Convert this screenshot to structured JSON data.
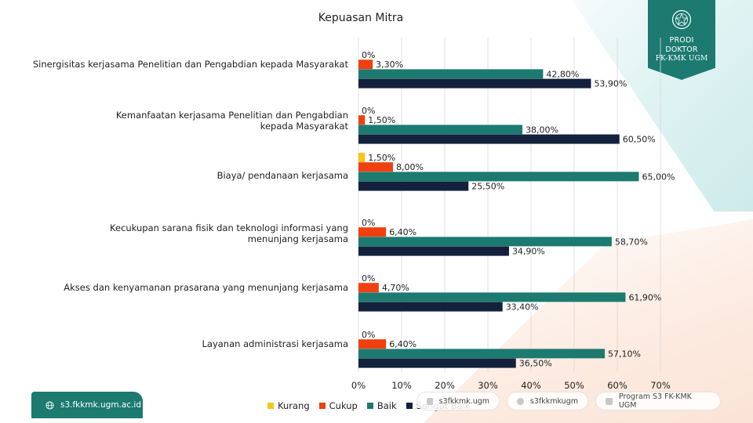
{
  "chart_data": {
    "type": "bar",
    "orientation": "horizontal",
    "title": "Kepuasan Mitra",
    "categories": [
      "Sinergisitas kerjasama Penelitian dan Pengabdian kepada Masyarakat",
      "Kemanfaatan kerjasama Penelitian dan Pengabdian kepada Masyarakat",
      "Biaya/ pendanaan kerjasama",
      "Kecukupan sarana fisik dan teknologi informasi yang menunjang kerjasama",
      "Akses dan kenyamanan prasarana yang menunjang kerjasama",
      "Layanan administrasi kerjasama"
    ],
    "series": [
      {
        "name": "Kurang",
        "color": "#F5C518",
        "values": [
          0,
          0,
          1.5,
          0,
          0,
          0
        ],
        "labels": [
          "0%",
          "0%",
          "1,50%",
          "0%",
          "0%",
          "0%"
        ]
      },
      {
        "name": "Cukup",
        "color": "#F0400F",
        "values": [
          3.3,
          1.5,
          8.0,
          6.4,
          4.7,
          6.4
        ],
        "labels": [
          "3,30%",
          "1,50%",
          "8,00%",
          "6,40%",
          "4,70%",
          "6,40%"
        ]
      },
      {
        "name": "Baik",
        "color": "#1C7A70",
        "values": [
          42.8,
          38.0,
          65.0,
          58.7,
          61.9,
          57.1
        ],
        "labels": [
          "42,80%",
          "38,00%",
          "65,00%",
          "58,70%",
          "61,90%",
          "57,10%"
        ]
      },
      {
        "name": "Sangat Baik",
        "color": "#14213D",
        "values": [
          53.9,
          60.5,
          25.5,
          34.9,
          33.4,
          36.5
        ],
        "labels": [
          "53,90%",
          "60,50%",
          "25,50%",
          "34,90%",
          "33,40%",
          "36,50%"
        ]
      }
    ],
    "xlim": [
      0,
      70
    ],
    "ticks": [
      "0%",
      "10%",
      "20%",
      "30%",
      "40%",
      "50%",
      "60%",
      "70%"
    ],
    "grid": true,
    "legend_position": "bottom"
  },
  "logo": {
    "line1": "PRODI",
    "line2": "DOKTOR",
    "line3": "FK-KMK UGM"
  },
  "footer": {
    "website": "s3.fkkmk.ugm.ac.id",
    "social": [
      {
        "icon": "instagram-icon",
        "text": "s3fkkmk.ugm"
      },
      {
        "icon": "facebook-icon",
        "text": "s3fkkmkugm"
      },
      {
        "icon": "youtube-icon",
        "text": "Program S3 FK-KMK UGM"
      }
    ]
  }
}
